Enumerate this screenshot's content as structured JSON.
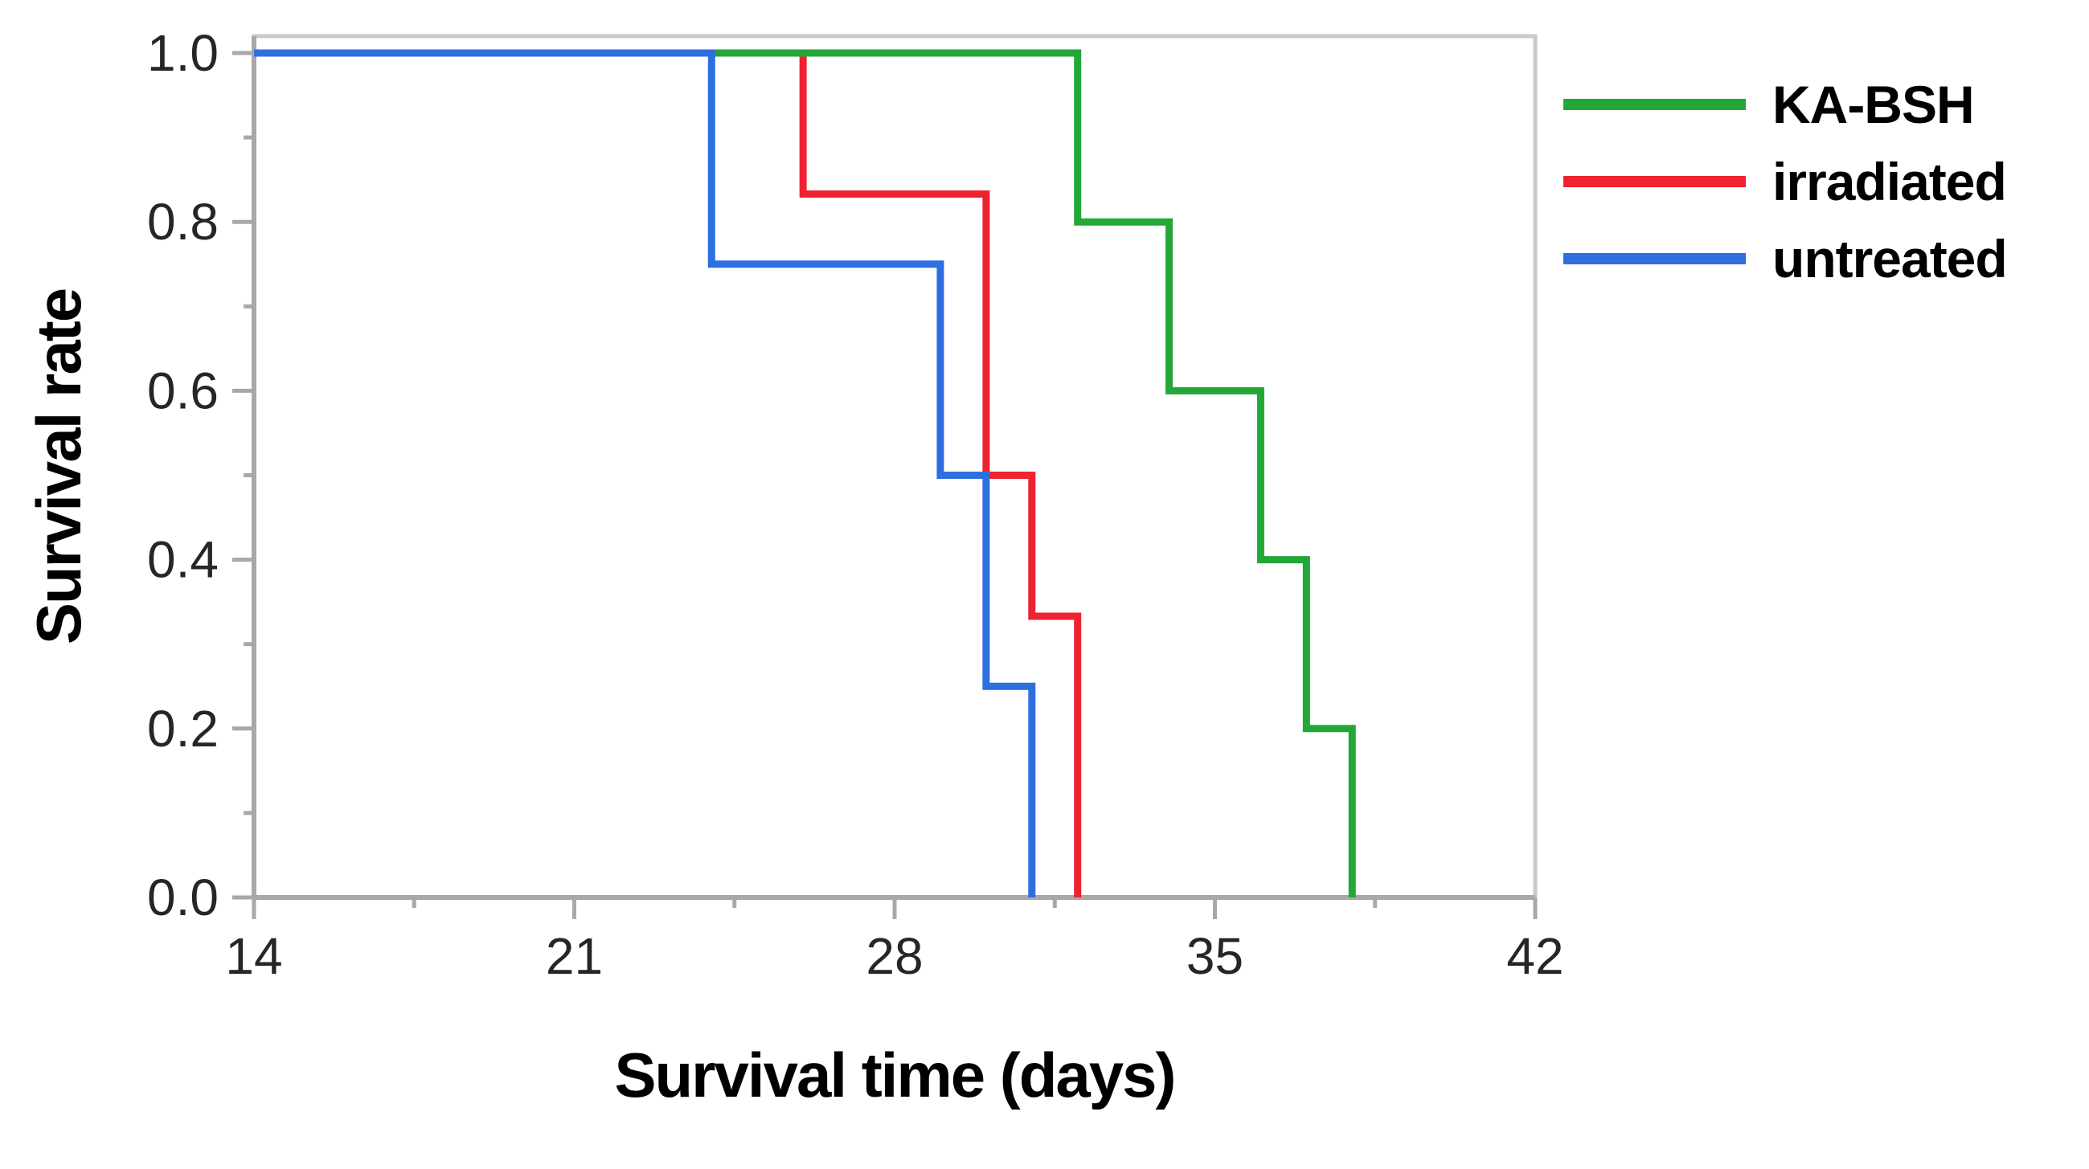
{
  "figure": {
    "background": "#ffffff",
    "plot_box_color": "#c9c9c9",
    "axis_color": "#a8a8a8",
    "tick_color": "#a8a8a8"
  },
  "chart_data": {
    "type": "line",
    "subtype": "kaplan-meier-step-survival",
    "title": "",
    "xlabel": "Survival time (days)",
    "ylabel": "Survival rate",
    "xlim": [
      14,
      42
    ],
    "ylim": [
      0,
      1.02
    ],
    "grid": false,
    "legend_position": "outside-top-right",
    "x_major_ticks": [
      14,
      21,
      28,
      35,
      42
    ],
    "x_major_tick_labels": [
      "14",
      "21",
      "28",
      "35",
      "42"
    ],
    "x_minor_ticks": [
      17.5,
      24.5,
      31.5,
      38.5
    ],
    "y_major_ticks": [
      0.0,
      0.2,
      0.4,
      0.6,
      0.8,
      1.0
    ],
    "y_major_tick_labels": [
      "0.0",
      "0.2",
      "0.4",
      "0.6",
      "0.8",
      "1.0"
    ],
    "y_minor_ticks": [
      0.1,
      0.3,
      0.5,
      0.7,
      0.9
    ],
    "series": [
      {
        "name": "KA-BSH",
        "color": "#23a737",
        "start": [
          14,
          1.0
        ],
        "steps": [
          [
            32,
            0.8
          ],
          [
            34,
            0.6
          ],
          [
            36,
            0.4
          ],
          [
            37,
            0.2
          ],
          [
            38,
            0.0
          ]
        ]
      },
      {
        "name": "irradiated",
        "color": "#ee2231",
        "start": [
          14,
          1.0
        ],
        "steps": [
          [
            26,
            0.833
          ],
          [
            30,
            0.5
          ],
          [
            31,
            0.333
          ],
          [
            32,
            0.0
          ]
        ]
      },
      {
        "name": "untreated",
        "color": "#2e6fe0",
        "start": [
          14,
          1.0
        ],
        "steps": [
          [
            24,
            0.75
          ],
          [
            29,
            0.5
          ],
          [
            30,
            0.25
          ],
          [
            31,
            0.0
          ]
        ]
      }
    ],
    "draw_order": [
      1,
      0,
      2
    ]
  },
  "legend": {
    "entries": [
      {
        "label": "KA-BSH",
        "color": "#23a737"
      },
      {
        "label": "irradiated",
        "color": "#ee2231"
      },
      {
        "label": "untreated",
        "color": "#2e6fe0"
      }
    ]
  }
}
